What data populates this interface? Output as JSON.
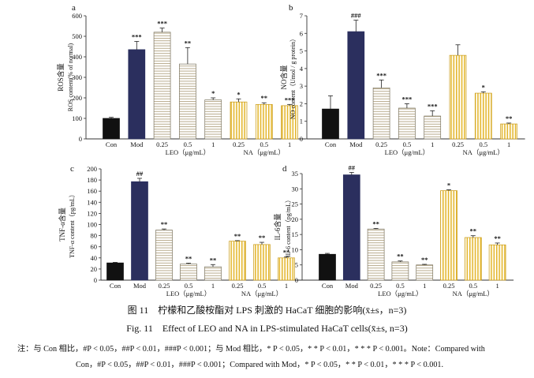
{
  "colors": {
    "con": "#111111",
    "mod": "#2b2f5e",
    "leo_stripe": "#b9ac8e",
    "na_stripe": "#e3b52c",
    "axis": "#333333"
  },
  "chart_data": [
    {
      "type": "bar",
      "panel_label": "a",
      "ylabel": "ROS含量",
      "ylabel_line2": "ROS content(% of normal)",
      "ylim": [
        0,
        600
      ],
      "yticks": [
        0,
        100,
        200,
        300,
        400,
        500,
        600
      ],
      "categories": [
        "Con",
        "Mod",
        "0.25",
        "0.5",
        "1",
        "0.25",
        "0.5",
        "1"
      ],
      "groups": [
        "control",
        "model",
        "leo",
        "leo",
        "leo",
        "na",
        "na",
        "na"
      ],
      "values": [
        100,
        435,
        520,
        365,
        190,
        180,
        168,
        162
      ],
      "errors": [
        5,
        40,
        20,
        80,
        10,
        15,
        8,
        6
      ],
      "sig": [
        "",
        "***",
        "***",
        "**",
        "*",
        "*",
        "**",
        "***"
      ],
      "group_labels": {
        "leo": "LEO（μg/mL）",
        "na": "NA（μg/mL）"
      }
    },
    {
      "type": "bar",
      "panel_label": "b",
      "ylabel": "NO含量",
      "ylabel_line2": "NO content（Umol / g protein）",
      "ylim": [
        0,
        7
      ],
      "yticks": [
        0,
        1,
        2,
        3,
        4,
        5,
        6,
        7
      ],
      "categories": [
        "Con",
        "Mod",
        "0.25",
        "0.5",
        "1",
        "0.25",
        "0.5",
        "1"
      ],
      "groups": [
        "control",
        "model",
        "leo",
        "leo",
        "leo",
        "na",
        "na",
        "na"
      ],
      "values": [
        1.7,
        6.1,
        2.9,
        1.75,
        1.3,
        4.75,
        2.6,
        0.85
      ],
      "errors": [
        0.75,
        0.65,
        0.45,
        0.25,
        0.3,
        0.6,
        0.08,
        0.05
      ],
      "sig": [
        "",
        "###",
        "***",
        "***",
        "***",
        "",
        "*",
        "**"
      ],
      "group_labels": {
        "leo": "LEO（μg/mL）",
        "na": "NA（μg/mL）"
      }
    },
    {
      "type": "bar",
      "panel_label": "c",
      "ylabel": "TNF-α含量",
      "ylabel_line2": "TNF-α content（pg/mL）",
      "ylim": [
        0,
        200
      ],
      "yticks": [
        0,
        20,
        40,
        60,
        80,
        100,
        120,
        140,
        160,
        180,
        200
      ],
      "categories": [
        "Con",
        "Mod",
        "0.25",
        "0.5",
        "1",
        "0.25",
        "0.5",
        "1"
      ],
      "groups": [
        "control",
        "model",
        "leo",
        "leo",
        "leo",
        "na",
        "na",
        "na"
      ],
      "values": [
        31,
        177,
        90,
        29,
        24,
        70,
        64,
        40
      ],
      "errors": [
        1,
        6,
        2,
        1.5,
        4,
        1,
        4,
        1.5
      ],
      "sig": [
        "",
        "##",
        "**",
        "**",
        "**",
        "**",
        "**",
        "**"
      ],
      "group_labels": {
        "leo": "LEO（μg/mL）",
        "na": "NA（μg/mL）"
      }
    },
    {
      "type": "bar",
      "panel_label": "d",
      "ylabel": "IL-6含量",
      "ylabel_line2": "IL-6 content（pg/mL）",
      "ylim": [
        0,
        35
      ],
      "yticks": [
        0,
        5,
        10,
        15,
        20,
        25,
        30,
        35
      ],
      "categories": [
        "Con",
        "Mod",
        "0.25",
        "0.5",
        "1",
        "0.25",
        "0.5",
        "1"
      ],
      "groups": [
        "control",
        "model",
        "leo",
        "leo",
        "leo",
        "na",
        "na",
        "na"
      ],
      "values": [
        8.5,
        34.6,
        16.8,
        6,
        5,
        29.4,
        14,
        11.6
      ],
      "errors": [
        0.3,
        0.8,
        0.2,
        0.3,
        0.2,
        0.3,
        0.6,
        0.6
      ],
      "sig": [
        "",
        "##",
        "**",
        "**",
        "**",
        "*",
        "**",
        "**"
      ],
      "group_labels": {
        "leo": "LEO（μg/mL）",
        "na": "NA（μg/mL）"
      }
    }
  ],
  "caption": {
    "cn": "图 11　柠檬和乙酸桉酯对 LPS 刺激的 HaCaT 细胞的影响(x̄±s，n=3)",
    "en": "Fig. 11　Effect of LEO and NA in LPS-stimulated HaCaT cells(x̄±s, n=3)",
    "note_line1": "注：与 Con 相比，#P < 0.05，##P < 0.01，###P < 0.001；与 Mod 相比，* P < 0.05，* * P < 0.01，* * * P < 0.001。Note：Compared with",
    "note_line2": "Con，#P < 0.05，##P < 0.01，###P < 0.001；Compared with Mod，* P < 0.05，* * P < 0.01，* * * P < 0.001."
  }
}
